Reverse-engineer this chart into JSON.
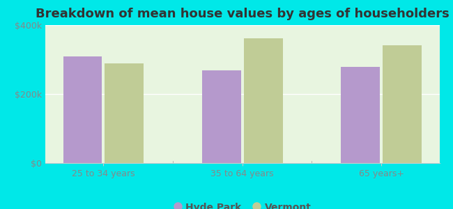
{
  "title": "Breakdown of mean house values by ages of householders",
  "categories": [
    "25 to 34 years",
    "35 to 64 years",
    "65 years+"
  ],
  "hyde_park_values": [
    310000,
    268000,
    278000
  ],
  "vermont_values": [
    288000,
    362000,
    342000
  ],
  "hyde_park_color": "#b599cc",
  "vermont_color": "#c0cc96",
  "background_color": "#00e8e8",
  "plot_bg_color": "#e8f5e8",
  "ylim": [
    0,
    400000
  ],
  "yticks": [
    0,
    200000,
    400000
  ],
  "ytick_labels": [
    "$0",
    "$200k",
    "$400k"
  ],
  "legend_labels": [
    "Hyde Park",
    "Vermont"
  ],
  "bar_width": 0.28,
  "title_fontsize": 13,
  "tick_fontsize": 9,
  "legend_fontsize": 10
}
